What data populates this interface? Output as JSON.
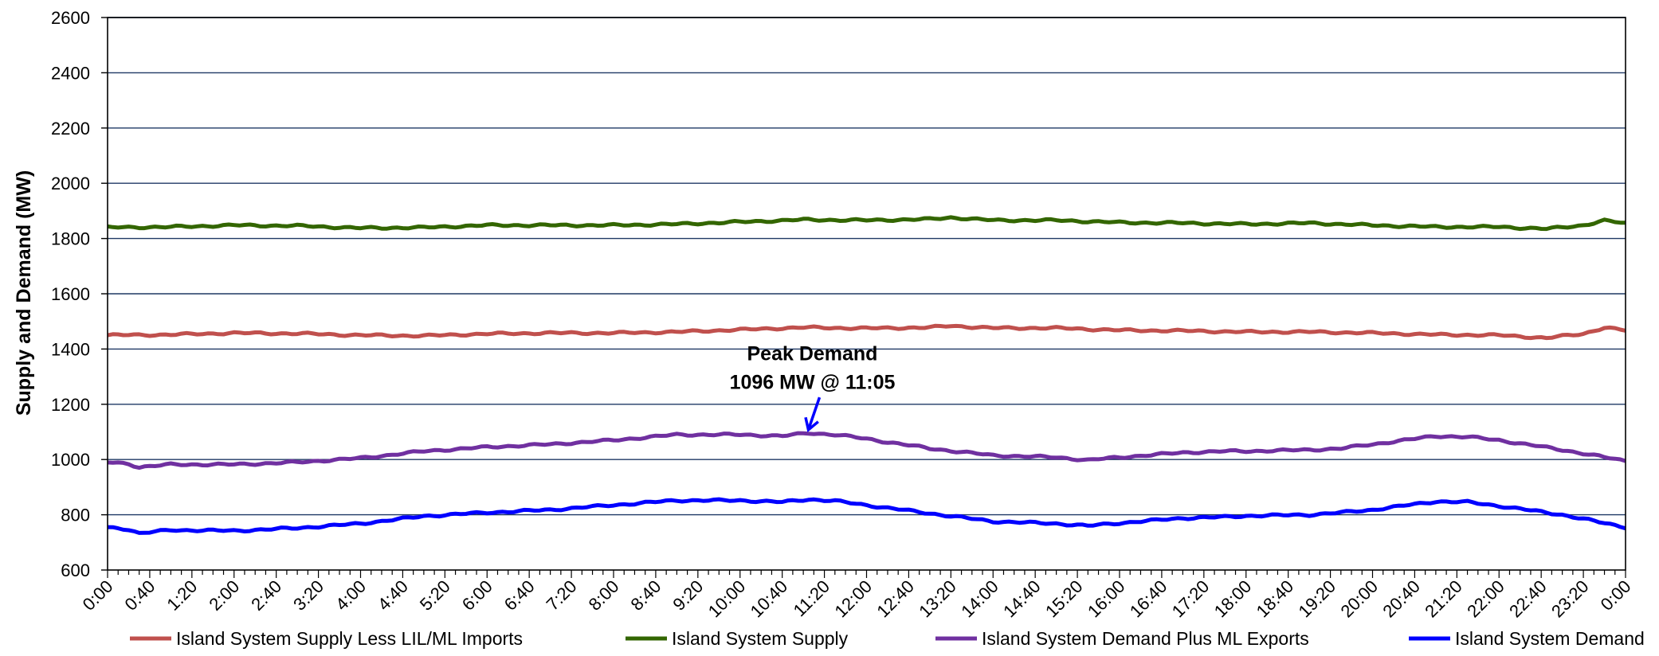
{
  "chart_data": {
    "type": "line",
    "ylabel": "Supply and Demand (MW)",
    "ylim": [
      600,
      2600
    ],
    "yticks": [
      600,
      800,
      1000,
      1200,
      1400,
      1600,
      1800,
      2000,
      2200,
      2400,
      2600
    ],
    "x_tick_labels": [
      "0:00",
      "0:40",
      "1:20",
      "2:00",
      "2:40",
      "3:20",
      "4:00",
      "4:40",
      "5:20",
      "6:00",
      "6:40",
      "7:20",
      "8:00",
      "8:40",
      "9:20",
      "10:00",
      "10:40",
      "11:20",
      "12:00",
      "12:40",
      "13:20",
      "14:00",
      "14:40",
      "15:20",
      "16:00",
      "16:40",
      "17:20",
      "18:00",
      "18:40",
      "19:20",
      "20:00",
      "20:40",
      "21:20",
      "22:00",
      "22:40",
      "23:20",
      "0:00"
    ],
    "grid": true,
    "legend_position": "bottom",
    "annotation": {
      "line1": "Peak Demand",
      "line2": "1096 MW @ 11:05",
      "x_hours": 11.08,
      "y": 1096
    },
    "series": [
      {
        "name": "Island System Supply Less LIL/ML Imports",
        "color": "#c0504d",
        "x_hours": [
          0,
          1,
          2,
          3,
          4,
          5,
          6,
          7,
          8,
          9,
          10,
          11,
          12,
          13,
          13.33,
          14,
          15,
          16,
          17,
          18,
          19,
          20,
          21,
          22,
          22.75,
          23.33,
          23.67,
          24
        ],
        "y": [
          1450,
          1452,
          1458,
          1456,
          1450,
          1448,
          1455,
          1458,
          1458,
          1462,
          1470,
          1478,
          1475,
          1478,
          1484,
          1476,
          1476,
          1468,
          1466,
          1462,
          1462,
          1458,
          1452,
          1450,
          1440,
          1455,
          1478,
          1467
        ]
      },
      {
        "name": "Island System Supply",
        "color": "#336600",
        "x_hours": [
          0,
          1,
          2,
          3,
          4,
          5,
          6,
          7,
          8,
          9,
          10,
          11,
          12,
          13,
          13.33,
          14,
          15,
          16,
          17,
          18,
          19,
          20,
          21,
          22,
          22.75,
          23.33,
          23.67,
          24
        ],
        "y": [
          1840,
          1842,
          1848,
          1846,
          1838,
          1840,
          1848,
          1848,
          1848,
          1852,
          1860,
          1868,
          1866,
          1870,
          1876,
          1866,
          1866,
          1858,
          1856,
          1852,
          1856,
          1848,
          1842,
          1842,
          1835,
          1848,
          1865,
          1855
        ]
      },
      {
        "name": "Island System Demand Plus ML Exports",
        "color": "#7030a0",
        "x_hours": [
          0,
          0.33,
          0.5,
          1,
          2,
          3,
          4,
          5,
          6,
          7,
          8,
          9,
          10,
          10.67,
          11.08,
          11.5,
          12,
          13,
          14,
          15,
          15.5,
          16,
          17,
          17.67,
          18,
          19,
          19.5,
          20,
          21,
          21.5,
          22,
          23,
          24
        ],
        "y": [
          990,
          985,
          972,
          982,
          982,
          990,
          1005,
          1030,
          1045,
          1055,
          1070,
          1090,
          1090,
          1085,
          1096,
          1090,
          1075,
          1040,
          1015,
          1008,
          998,
          1008,
          1025,
          1030,
          1030,
          1035,
          1040,
          1055,
          1085,
          1082,
          1070,
          1035,
          995
        ]
      },
      {
        "name": "Island System Demand",
        "color": "#0000ff",
        "x_hours": [
          0,
          0.33,
          0.5,
          1,
          2,
          3,
          4,
          5,
          6,
          7,
          8,
          9,
          10,
          10.67,
          11.08,
          11.5,
          12,
          13,
          14,
          15,
          15.5,
          16,
          17,
          17.67,
          18,
          19,
          19.5,
          20,
          21,
          21.5,
          22,
          23,
          24
        ],
        "y": [
          755,
          748,
          732,
          745,
          742,
          752,
          768,
          795,
          808,
          818,
          835,
          852,
          852,
          846,
          856,
          850,
          835,
          805,
          776,
          768,
          760,
          770,
          788,
          792,
          796,
          800,
          808,
          818,
          848,
          846,
          832,
          800,
          755
        ]
      }
    ]
  }
}
